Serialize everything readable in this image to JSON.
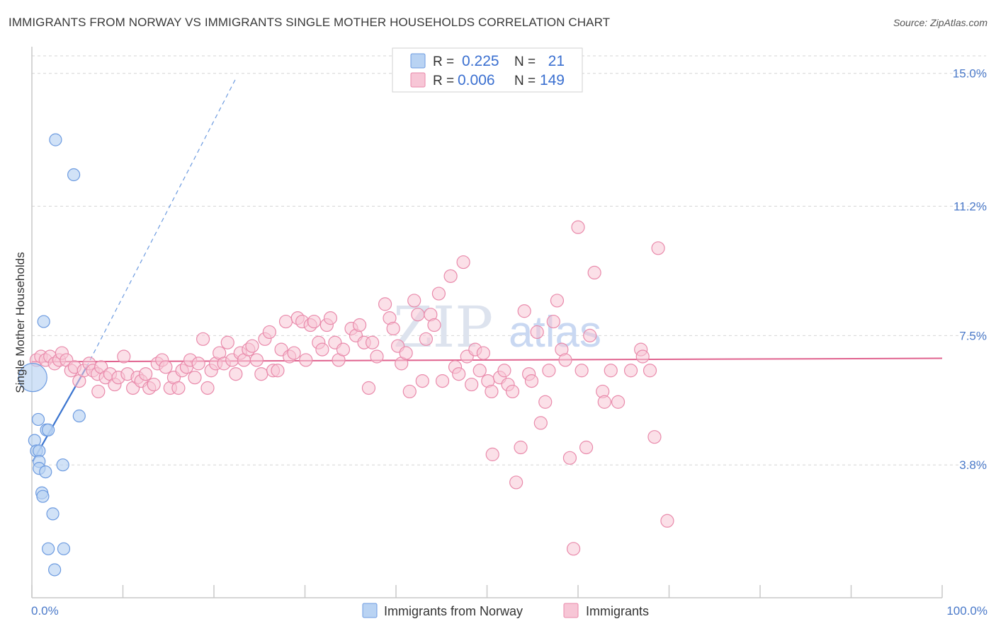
{
  "title": "IMMIGRANTS FROM NORWAY VS IMMIGRANTS SINGLE MOTHER HOUSEHOLDS CORRELATION CHART",
  "source": "Source: ZipAtlas.com",
  "watermark": {
    "zip": "ZIP",
    "atlas": "atlas"
  },
  "colors": {
    "blue_fill": "#b9d3f3",
    "blue_stroke": "#6d9be0",
    "blue_line": "#3a74cf",
    "pink_fill": "#f7c6d6",
    "pink_stroke": "#e98aab",
    "pink_line": "#e0628e",
    "grid": "#d6d6d6",
    "tick_text": "#4a79c9"
  },
  "legend": {
    "rows": [
      {
        "r_label": "R =",
        "r_value": "0.225",
        "n_label": "N =",
        "n_value": "21"
      },
      {
        "r_label": "R =",
        "r_value": "0.006",
        "n_label": "N =",
        "n_value": "149"
      }
    ]
  },
  "bottom_legend": {
    "series1": "Immigrants from Norway",
    "series2": "Immigrants"
  },
  "chart_data": {
    "type": "scatter",
    "title": "IMMIGRANTS FROM NORWAY VS IMMIGRANTS SINGLE MOTHER HOUSEHOLDS CORRELATION CHART",
    "xlabel": "",
    "ylabel": "Single Mother Households",
    "xlim": [
      0,
      100
    ],
    "ylim": [
      0,
      15.5
    ],
    "x_tick_labels": [
      "0.0%",
      "100.0%"
    ],
    "y_ticks": [
      3.8,
      7.5,
      11.2,
      15.0
    ],
    "y_tick_labels": [
      "3.8%",
      "7.5%",
      "11.2%",
      "15.0%"
    ],
    "series": [
      {
        "name": "Immigrants from Norway",
        "R": 0.225,
        "N": 21,
        "trend": {
          "x": [
            0.1,
            6.0
          ],
          "y": [
            3.9,
            6.6
          ]
        },
        "trend_dashed": {
          "x": [
            6.0,
            22.5
          ],
          "y": [
            6.6,
            14.9
          ]
        },
        "points": [
          {
            "x": 0.1,
            "y": 6.3,
            "big": true
          },
          {
            "x": 2.6,
            "y": 13.1
          },
          {
            "x": 4.6,
            "y": 12.1
          },
          {
            "x": 1.3,
            "y": 7.9
          },
          {
            "x": 5.2,
            "y": 5.2
          },
          {
            "x": 0.7,
            "y": 5.1
          },
          {
            "x": 1.6,
            "y": 4.8
          },
          {
            "x": 1.8,
            "y": 4.8
          },
          {
            "x": 0.3,
            "y": 4.5
          },
          {
            "x": 0.5,
            "y": 4.2
          },
          {
            "x": 0.8,
            "y": 4.2
          },
          {
            "x": 0.8,
            "y": 3.9
          },
          {
            "x": 3.4,
            "y": 3.8
          },
          {
            "x": 0.8,
            "y": 3.7
          },
          {
            "x": 1.5,
            "y": 3.6
          },
          {
            "x": 1.1,
            "y": 3.0
          },
          {
            "x": 1.2,
            "y": 2.9
          },
          {
            "x": 2.3,
            "y": 2.4
          },
          {
            "x": 1.8,
            "y": 1.4
          },
          {
            "x": 3.5,
            "y": 1.4
          },
          {
            "x": 2.5,
            "y": 0.8
          }
        ]
      },
      {
        "name": "Immigrants",
        "R": 0.006,
        "N": 149,
        "trend": {
          "x": [
            0,
            100
          ],
          "y": [
            6.75,
            6.85
          ]
        },
        "points": [
          {
            "x": 0.5,
            "y": 6.8
          },
          {
            "x": 1.0,
            "y": 6.9
          },
          {
            "x": 1.5,
            "y": 6.8
          },
          {
            "x": 2.0,
            "y": 6.9
          },
          {
            "x": 2.5,
            "y": 6.7
          },
          {
            "x": 3.0,
            "y": 6.8
          },
          {
            "x": 3.3,
            "y": 7.0
          },
          {
            "x": 3.8,
            "y": 6.8
          },
          {
            "x": 4.3,
            "y": 6.5
          },
          {
            "x": 4.7,
            "y": 6.6
          },
          {
            "x": 5.2,
            "y": 6.2
          },
          {
            "x": 5.7,
            "y": 6.5
          },
          {
            "x": 6.3,
            "y": 6.7
          },
          {
            "x": 6.7,
            "y": 6.5
          },
          {
            "x": 7.2,
            "y": 6.4
          },
          {
            "x": 7.6,
            "y": 6.6
          },
          {
            "x": 7.3,
            "y": 5.9
          },
          {
            "x": 8.1,
            "y": 6.3
          },
          {
            "x": 8.6,
            "y": 6.4
          },
          {
            "x": 9.1,
            "y": 6.1
          },
          {
            "x": 9.5,
            "y": 6.3
          },
          {
            "x": 10.1,
            "y": 6.9
          },
          {
            "x": 10.5,
            "y": 6.4
          },
          {
            "x": 11.1,
            "y": 6.0
          },
          {
            "x": 11.6,
            "y": 6.3
          },
          {
            "x": 12.0,
            "y": 6.2
          },
          {
            "x": 12.5,
            "y": 6.4
          },
          {
            "x": 12.9,
            "y": 6.0
          },
          {
            "x": 13.4,
            "y": 6.1
          },
          {
            "x": 13.8,
            "y": 6.7
          },
          {
            "x": 14.3,
            "y": 6.8
          },
          {
            "x": 14.7,
            "y": 6.6
          },
          {
            "x": 15.2,
            "y": 6.0
          },
          {
            "x": 15.6,
            "y": 6.3
          },
          {
            "x": 16.1,
            "y": 6.0
          },
          {
            "x": 16.5,
            "y": 6.5
          },
          {
            "x": 17.0,
            "y": 6.6
          },
          {
            "x": 17.4,
            "y": 6.8
          },
          {
            "x": 17.9,
            "y": 6.3
          },
          {
            "x": 18.3,
            "y": 6.7
          },
          {
            "x": 18.8,
            "y": 7.4
          },
          {
            "x": 19.3,
            "y": 6.0
          },
          {
            "x": 19.7,
            "y": 6.5
          },
          {
            "x": 20.2,
            "y": 6.7
          },
          {
            "x": 20.6,
            "y": 7.0
          },
          {
            "x": 21.1,
            "y": 6.7
          },
          {
            "x": 21.5,
            "y": 7.3
          },
          {
            "x": 22.0,
            "y": 6.8
          },
          {
            "x": 22.4,
            "y": 6.4
          },
          {
            "x": 22.9,
            "y": 7.0
          },
          {
            "x": 23.3,
            "y": 6.8
          },
          {
            "x": 23.8,
            "y": 7.1
          },
          {
            "x": 24.2,
            "y": 7.2
          },
          {
            "x": 24.7,
            "y": 6.8
          },
          {
            "x": 25.2,
            "y": 6.4
          },
          {
            "x": 25.6,
            "y": 7.4
          },
          {
            "x": 26.1,
            "y": 7.6
          },
          {
            "x": 26.5,
            "y": 6.5
          },
          {
            "x": 27.0,
            "y": 6.5
          },
          {
            "x": 27.4,
            "y": 7.1
          },
          {
            "x": 27.9,
            "y": 7.9
          },
          {
            "x": 28.3,
            "y": 6.9
          },
          {
            "x": 28.8,
            "y": 7.0
          },
          {
            "x": 29.2,
            "y": 8.0
          },
          {
            "x": 29.7,
            "y": 7.9
          },
          {
            "x": 30.1,
            "y": 6.8
          },
          {
            "x": 30.6,
            "y": 7.8
          },
          {
            "x": 31.0,
            "y": 7.9
          },
          {
            "x": 31.5,
            "y": 7.3
          },
          {
            "x": 31.9,
            "y": 7.1
          },
          {
            "x": 32.4,
            "y": 7.8
          },
          {
            "x": 32.8,
            "y": 8.0
          },
          {
            "x": 33.3,
            "y": 7.3
          },
          {
            "x": 33.7,
            "y": 6.8
          },
          {
            "x": 34.2,
            "y": 7.1
          },
          {
            "x": 35.1,
            "y": 7.7
          },
          {
            "x": 35.6,
            "y": 7.5
          },
          {
            "x": 36.0,
            "y": 7.8
          },
          {
            "x": 36.5,
            "y": 7.3
          },
          {
            "x": 37.0,
            "y": 6.0
          },
          {
            "x": 37.4,
            "y": 7.3
          },
          {
            "x": 37.9,
            "y": 6.9
          },
          {
            "x": 38.8,
            "y": 8.4
          },
          {
            "x": 39.3,
            "y": 8.0
          },
          {
            "x": 39.7,
            "y": 7.7
          },
          {
            "x": 40.2,
            "y": 7.2
          },
          {
            "x": 40.6,
            "y": 6.7
          },
          {
            "x": 41.1,
            "y": 7.0
          },
          {
            "x": 41.5,
            "y": 5.9
          },
          {
            "x": 42.0,
            "y": 8.5
          },
          {
            "x": 42.4,
            "y": 8.1
          },
          {
            "x": 42.9,
            "y": 6.2
          },
          {
            "x": 43.3,
            "y": 7.4
          },
          {
            "x": 43.8,
            "y": 8.1
          },
          {
            "x": 44.2,
            "y": 7.8
          },
          {
            "x": 44.7,
            "y": 8.7
          },
          {
            "x": 45.1,
            "y": 6.2
          },
          {
            "x": 46.0,
            "y": 9.2
          },
          {
            "x": 46.5,
            "y": 6.6
          },
          {
            "x": 46.9,
            "y": 6.4
          },
          {
            "x": 47.4,
            "y": 9.6
          },
          {
            "x": 47.8,
            "y": 6.9
          },
          {
            "x": 48.3,
            "y": 6.1
          },
          {
            "x": 48.7,
            "y": 7.1
          },
          {
            "x": 49.2,
            "y": 6.5
          },
          {
            "x": 49.6,
            "y": 7.0
          },
          {
            "x": 50.1,
            "y": 6.2
          },
          {
            "x": 50.5,
            "y": 5.9
          },
          {
            "x": 50.6,
            "y": 4.1
          },
          {
            "x": 51.4,
            "y": 6.3
          },
          {
            "x": 51.9,
            "y": 6.5
          },
          {
            "x": 52.3,
            "y": 6.1
          },
          {
            "x": 52.8,
            "y": 5.9
          },
          {
            "x": 53.2,
            "y": 3.3
          },
          {
            "x": 53.7,
            "y": 4.3
          },
          {
            "x": 54.1,
            "y": 8.2
          },
          {
            "x": 54.6,
            "y": 6.4
          },
          {
            "x": 54.9,
            "y": 6.2
          },
          {
            "x": 55.5,
            "y": 7.6
          },
          {
            "x": 55.9,
            "y": 5.0
          },
          {
            "x": 56.4,
            "y": 5.6
          },
          {
            "x": 56.8,
            "y": 6.5
          },
          {
            "x": 57.3,
            "y": 7.9
          },
          {
            "x": 57.7,
            "y": 8.5
          },
          {
            "x": 58.2,
            "y": 7.1
          },
          {
            "x": 58.6,
            "y": 6.8
          },
          {
            "x": 59.1,
            "y": 4.0
          },
          {
            "x": 59.5,
            "y": 1.4
          },
          {
            "x": 60.0,
            "y": 10.6
          },
          {
            "x": 60.4,
            "y": 6.5
          },
          {
            "x": 60.9,
            "y": 4.3
          },
          {
            "x": 61.3,
            "y": 7.5
          },
          {
            "x": 61.8,
            "y": 9.3
          },
          {
            "x": 62.7,
            "y": 5.9
          },
          {
            "x": 62.9,
            "y": 5.6
          },
          {
            "x": 63.6,
            "y": 6.5
          },
          {
            "x": 64.4,
            "y": 5.6
          },
          {
            "x": 65.8,
            "y": 6.5
          },
          {
            "x": 66.9,
            "y": 7.1
          },
          {
            "x": 67.1,
            "y": 6.9
          },
          {
            "x": 67.9,
            "y": 6.5
          },
          {
            "x": 68.4,
            "y": 4.6
          },
          {
            "x": 68.8,
            "y": 10.0
          },
          {
            "x": 69.8,
            "y": 2.2
          }
        ]
      }
    ]
  }
}
